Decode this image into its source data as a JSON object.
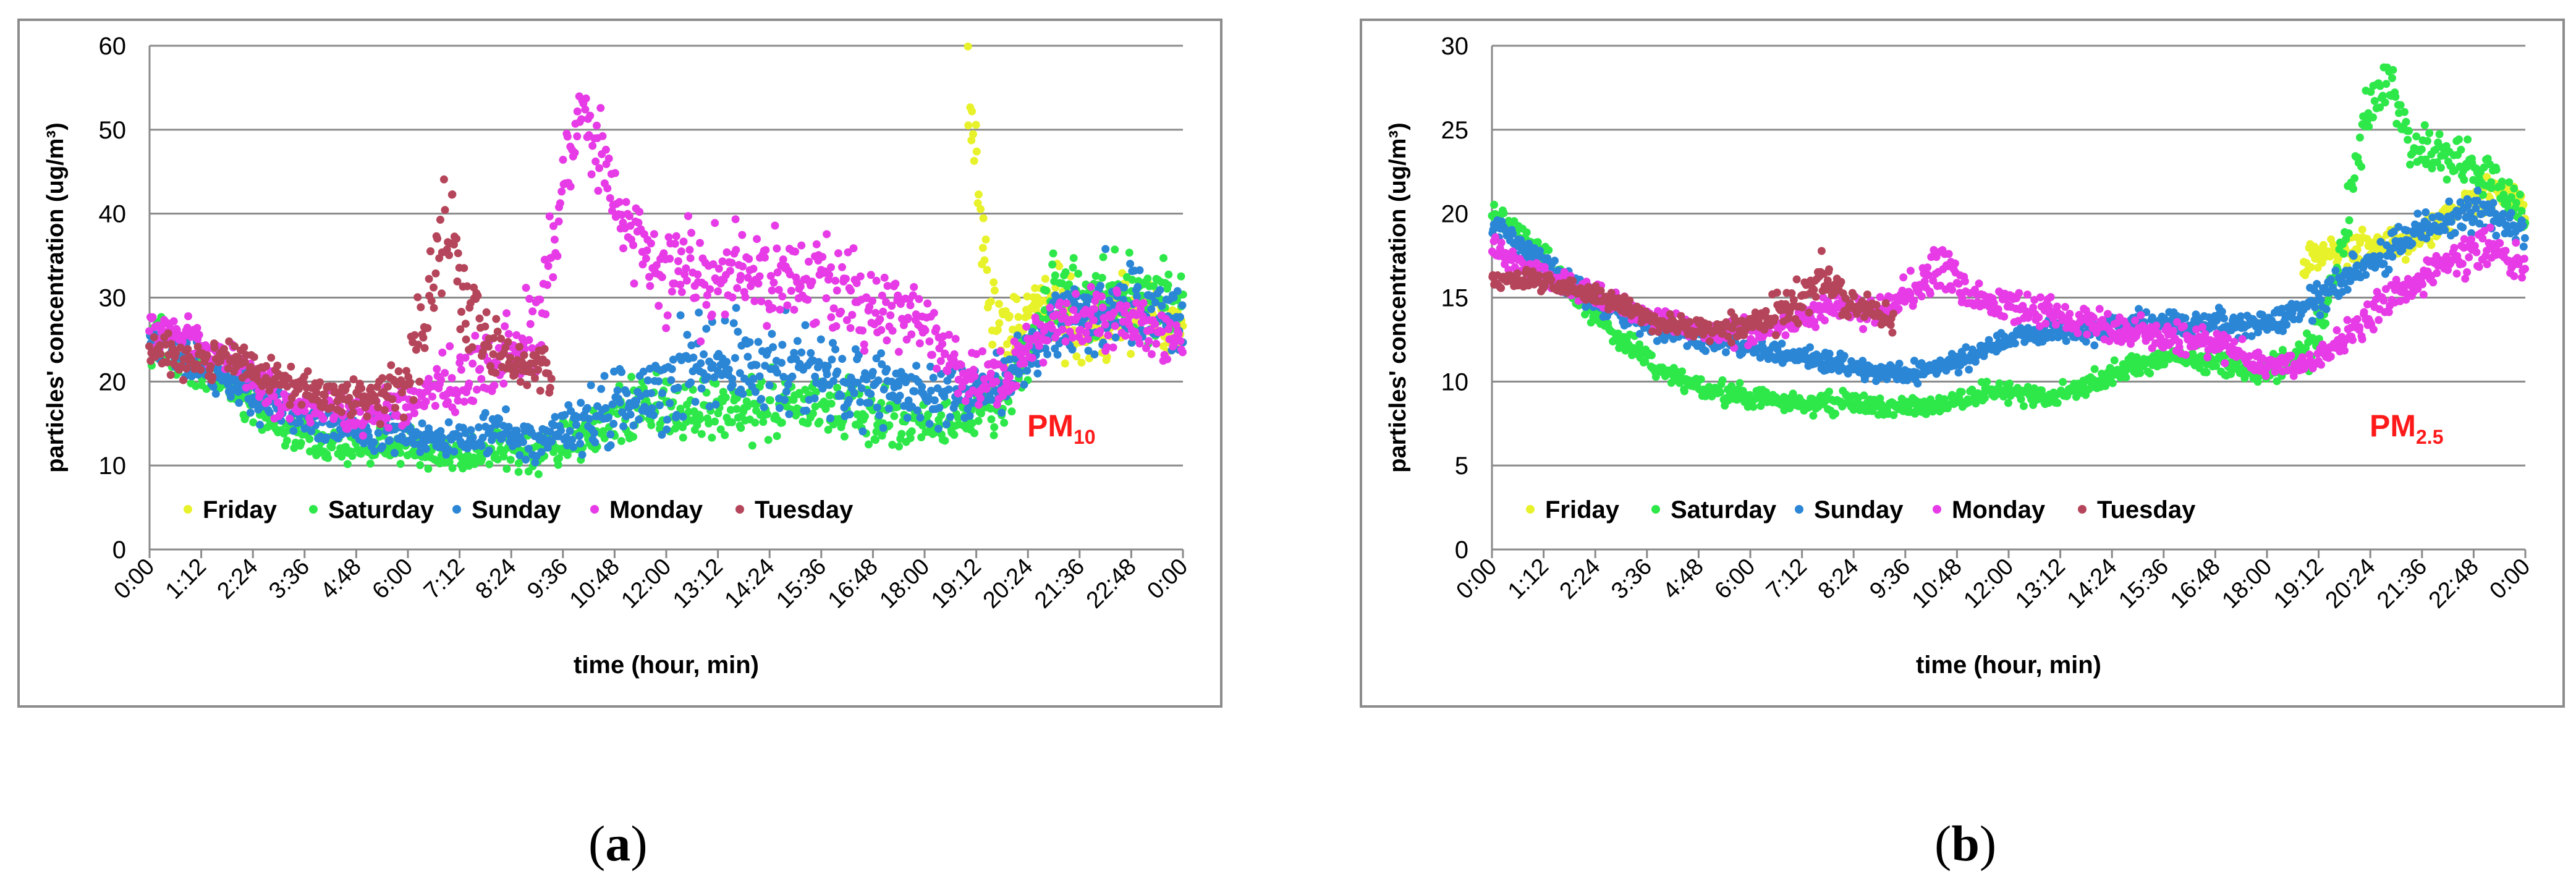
{
  "sublabels": {
    "a": "a",
    "b": "b"
  },
  "series_colors": {
    "Friday": "#e8f22a",
    "Saturday": "#2ee84a",
    "Sunday": "#2b86d6",
    "Monday": "#e63be6",
    "Tuesday": "#b5455a"
  },
  "chart_data": [
    {
      "id": "a",
      "type": "scatter",
      "title": "",
      "tag_main": "PM",
      "tag_sub": "10",
      "xlabel": "time (hour, min)",
      "ylabel": "particles' concentration (ug/m³)",
      "ylim": [
        0,
        60
      ],
      "yticks": [
        0,
        10,
        20,
        30,
        40,
        50,
        60
      ],
      "xlim": [
        0,
        1440
      ],
      "xtick_minutes": [
        0,
        72,
        144,
        216,
        288,
        360,
        432,
        504,
        576,
        648,
        720,
        792,
        864,
        936,
        1008,
        1080,
        1152,
        1224,
        1296,
        1368,
        1440
      ],
      "xtick_labels": [
        "0:00",
        "1:12",
        "2:24",
        "3:36",
        "4:48",
        "6:00",
        "7:12",
        "8:24",
        "9:36",
        "10:48",
        "12:00",
        "13:12",
        "14:24",
        "15:36",
        "16:48",
        "18:00",
        "19:12",
        "20:24",
        "21:36",
        "22:48",
        "0:00"
      ],
      "grid": true,
      "legend": [
        "Friday",
        "Saturday",
        "Sunday",
        "Monday",
        "Tuesday"
      ],
      "series": [
        {
          "name": "Friday",
          "x": [
            1140,
            1150,
            1160,
            1170,
            1180,
            1190,
            1200,
            1210,
            1220,
            1230,
            1240,
            1260,
            1290,
            1320,
            1350,
            1380,
            1410,
            1440
          ],
          "y": [
            55,
            48,
            38,
            30,
            27,
            26,
            26,
            27,
            28,
            29,
            30,
            29,
            27,
            26,
            27,
            28,
            27,
            26
          ],
          "spread": [
            5,
            6,
            5,
            4,
            3,
            3,
            3,
            3,
            3,
            3,
            3,
            4,
            4,
            4,
            4,
            4,
            4,
            4
          ]
        },
        {
          "name": "Saturday",
          "x": [
            0,
            60,
            120,
            180,
            240,
            300,
            360,
            420,
            480,
            540,
            600,
            660,
            720,
            780,
            840,
            900,
            960,
            1020,
            1080,
            1140,
            1200,
            1260,
            1320,
            1380,
            1440
          ],
          "y": [
            26,
            22,
            19,
            15,
            13,
            12,
            12,
            11,
            12,
            11,
            13,
            16,
            17,
            16,
            17,
            17,
            17,
            16,
            15,
            15,
            19,
            31,
            30,
            31,
            28
          ],
          "spread": [
            3,
            2,
            2,
            2,
            2,
            2,
            2,
            2,
            2,
            2,
            2,
            3,
            3,
            3,
            3,
            3,
            3,
            3,
            2,
            3,
            3,
            4,
            4,
            4,
            4
          ]
        },
        {
          "name": "Sunday",
          "x": [
            0,
            60,
            120,
            180,
            240,
            300,
            360,
            420,
            480,
            540,
            600,
            660,
            720,
            780,
            840,
            900,
            960,
            1020,
            1080,
            1140,
            1200,
            1260,
            1320,
            1380,
            1440
          ],
          "y": [
            25,
            22,
            19,
            17,
            15,
            14,
            14,
            13,
            14,
            13,
            15,
            17,
            20,
            22,
            21,
            22,
            20,
            19,
            18,
            18,
            21,
            27,
            28,
            29,
            27
          ],
          "spread": [
            2,
            2,
            2,
            2,
            2,
            2,
            2,
            2,
            2,
            2,
            3,
            4,
            5,
            5,
            5,
            5,
            4,
            4,
            3,
            3,
            3,
            4,
            5,
            5,
            4
          ]
        },
        {
          "name": "Monday",
          "x": [
            0,
            60,
            120,
            180,
            240,
            300,
            360,
            420,
            480,
            540,
            570,
            600,
            630,
            660,
            690,
            720,
            780,
            840,
            900,
            960,
            1020,
            1080,
            1140,
            1200,
            1260,
            1320,
            1380,
            1440
          ],
          "y": [
            27,
            25,
            22,
            18,
            17,
            16,
            17,
            20,
            22,
            26,
            40,
            52,
            47,
            40,
            36,
            33,
            32,
            33,
            32,
            31,
            29,
            27,
            20,
            21,
            27,
            28,
            27,
            24
          ],
          "spread": [
            2,
            2,
            2,
            2,
            2,
            2,
            2,
            3,
            4,
            5,
            5,
            3,
            4,
            4,
            5,
            5,
            5,
            5,
            5,
            5,
            4,
            4,
            3,
            3,
            3,
            3,
            3,
            3
          ]
        },
        {
          "name": "Tuesday",
          "x": [
            0,
            60,
            120,
            180,
            240,
            300,
            360,
            380,
            420,
            440,
            460,
            480,
            520,
            560
          ],
          "y": [
            24,
            22,
            23,
            20,
            18,
            18,
            20,
            28,
            38,
            28,
            27,
            24,
            22,
            21
          ],
          "spread": [
            2,
            2,
            2,
            2,
            2,
            2,
            4,
            6,
            5,
            4,
            3,
            3,
            3,
            3
          ]
        }
      ]
    },
    {
      "id": "b",
      "type": "scatter",
      "title": "",
      "tag_main": "PM",
      "tag_sub": "2.5",
      "xlabel": "time (hour, min)",
      "ylabel": "particles' concentration (ug/m³)",
      "ylim": [
        0,
        30
      ],
      "yticks": [
        0,
        5,
        10,
        15,
        20,
        25,
        30
      ],
      "xlim": [
        0,
        1440
      ],
      "xtick_minutes": [
        0,
        72,
        144,
        216,
        288,
        360,
        432,
        504,
        576,
        648,
        720,
        792,
        864,
        936,
        1008,
        1080,
        1152,
        1224,
        1296,
        1368,
        1440
      ],
      "xtick_labels": [
        "0:00",
        "1:12",
        "2:24",
        "3:36",
        "4:48",
        "6:00",
        "7:12",
        "8:24",
        "9:36",
        "10:48",
        "12:00",
        "13:12",
        "14:24",
        "15:36",
        "16:48",
        "18:00",
        "19:12",
        "20:24",
        "21:36",
        "22:48",
        "0:00"
      ],
      "grid": true,
      "legend": [
        "Friday",
        "Saturday",
        "Sunday",
        "Monday",
        "Tuesday"
      ],
      "series": [
        {
          "name": "Friday",
          "x": [
            1130,
            1160,
            1190,
            1220,
            1250,
            1280,
            1310,
            1340,
            1370,
            1400,
            1430,
            1440
          ],
          "y": [
            17,
            17.5,
            18,
            18,
            18,
            18.5,
            19,
            20,
            21,
            21,
            21,
            20
          ],
          "spread": [
            0.8,
            0.8,
            0.8,
            0.8,
            0.8,
            0.8,
            0.8,
            0.8,
            0.8,
            0.8,
            0.8,
            0.8
          ]
        },
        {
          "name": "Saturday",
          "x": [
            0,
            60,
            120,
            180,
            240,
            300,
            360,
            420,
            480,
            540,
            600,
            660,
            720,
            780,
            840,
            900,
            960,
            1020,
            1080,
            1140,
            1180,
            1220,
            1250,
            1280,
            1320,
            1360,
            1400,
            1440
          ],
          "y": [
            20,
            18,
            15,
            12.5,
            10.5,
            9.5,
            9,
            8.8,
            8.8,
            8.5,
            8.5,
            9,
            9.5,
            9,
            10,
            11,
            11.5,
            11,
            10.5,
            12,
            17,
            26,
            28,
            24,
            23.5,
            23,
            22,
            19.5
          ],
          "spread": [
            0.6,
            0.6,
            0.6,
            0.6,
            0.5,
            0.5,
            0.5,
            0.5,
            0.5,
            0.5,
            0.5,
            0.5,
            0.5,
            0.5,
            0.6,
            0.6,
            0.6,
            0.6,
            0.6,
            1,
            1.5,
            1.5,
            1.2,
            1,
            1,
            1,
            1,
            1
          ]
        },
        {
          "name": "Sunday",
          "x": [
            0,
            60,
            120,
            180,
            240,
            300,
            360,
            420,
            480,
            540,
            600,
            660,
            720,
            780,
            840,
            900,
            960,
            1020,
            1080,
            1140,
            1200,
            1260,
            1320,
            1380,
            1440
          ],
          "y": [
            19.5,
            17.5,
            15.5,
            14,
            13,
            12.5,
            12,
            11.5,
            11,
            10.5,
            10.5,
            11.5,
            12.5,
            13,
            13,
            13.5,
            13.5,
            13.5,
            13.5,
            14.5,
            16.5,
            18,
            19.5,
            20,
            19
          ],
          "spread": [
            0.6,
            0.6,
            0.6,
            0.6,
            0.6,
            0.6,
            0.6,
            0.5,
            0.5,
            0.5,
            0.6,
            0.6,
            0.6,
            0.6,
            0.6,
            0.6,
            0.6,
            0.6,
            0.6,
            0.7,
            0.8,
            1,
            1,
            1,
            1
          ]
        },
        {
          "name": "Monday",
          "x": [
            0,
            60,
            120,
            180,
            240,
            300,
            360,
            420,
            480,
            540,
            600,
            630,
            660,
            720,
            780,
            840,
            900,
            960,
            1020,
            1080,
            1140,
            1200,
            1260,
            1320,
            1380,
            1440
          ],
          "y": [
            18,
            16.5,
            15.5,
            14.5,
            13.5,
            13,
            13,
            13.5,
            14.5,
            14,
            16,
            17,
            15,
            14.5,
            14,
            13.5,
            13,
            12.5,
            12,
            11,
            11,
            13,
            15,
            17,
            18,
            17
          ],
          "spread": [
            0.6,
            0.6,
            0.6,
            0.6,
            0.6,
            0.6,
            0.6,
            0.6,
            0.6,
            0.8,
            1,
            1.2,
            1,
            0.8,
            0.8,
            0.8,
            0.8,
            0.8,
            0.8,
            0.6,
            0.6,
            0.8,
            1,
            1,
            1,
            1
          ]
        },
        {
          "name": "Tuesday",
          "x": [
            0,
            60,
            120,
            180,
            240,
            300,
            360,
            400,
            430,
            460,
            500,
            540,
            560
          ],
          "y": [
            16,
            16,
            15.5,
            14.5,
            13.5,
            13,
            13.5,
            14,
            15,
            16.5,
            14.5,
            14,
            13.5
          ],
          "spread": [
            0.5,
            0.5,
            0.5,
            0.5,
            0.5,
            0.5,
            0.8,
            1,
            1.5,
            1.5,
            0.8,
            0.6,
            0.6
          ]
        }
      ]
    }
  ]
}
